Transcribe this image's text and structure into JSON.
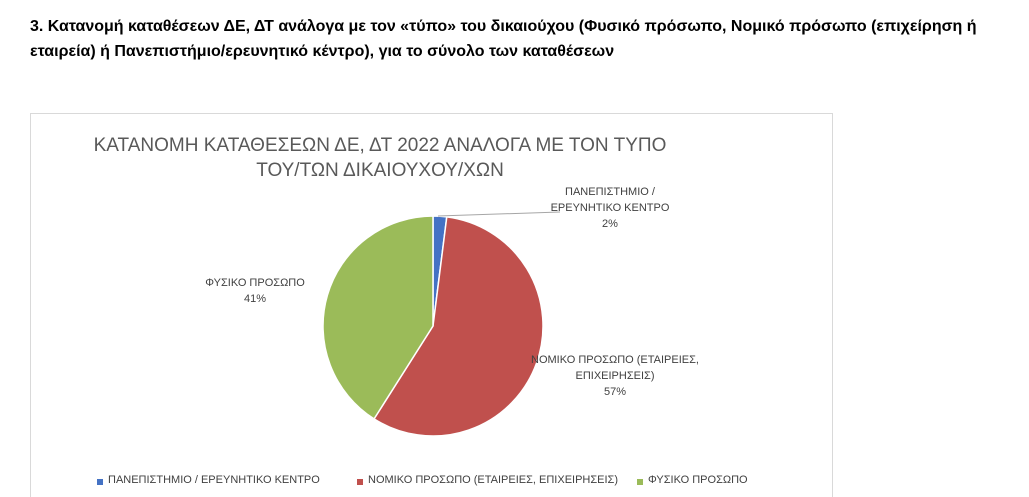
{
  "heading": "3. Κατανομή καταθέσεων ΔΕ, ΔΤ ανάλογα με τον «τύπο» του δικαιούχου (Φυσικό πρόσωπο, Νομικό πρόσωπο (επιχείρηση ή εταιρεία)  ή Πανεπιστήμιο/ερευνητικό κέντρο), για το σύνολο των καταθέσεων",
  "chart_data": {
    "type": "pie",
    "title": "ΚΑΤΑΝΟΜΗ ΚΑΤΑΘΕΣΕΩΝ ΔΕ, ΔΤ 2022 ΑΝΑΛΟΓΑ ΜΕ ΤΟΝ ΤΥΠΟ ΤΟΥ/ΤΩΝ ΔΙΚΑΙΟΥΧΟΥ/ΧΩΝ",
    "categories": [
      "ΠΑΝΕΠΙΣΤΗΜΙΟ / ΕΡΕΥΝΗΤΙΚΟ ΚΕΝΤΡΟ",
      "ΝΟΜΙΚΟ ΠΡΟΣΩΠΟ (ΕΤΑΙΡΕΙΕΣ, ΕΠΙΧΕΙΡΗΣΕΙΣ)",
      "ΦΥΣΙΚΟ ΠΡΟΣΩΠΟ"
    ],
    "values": [
      2,
      57,
      41
    ],
    "value_labels": [
      "2%",
      "57%",
      "41%"
    ],
    "colors": [
      "#4472c4",
      "#c0504d",
      "#9bbb59"
    ],
    "legend": "bottom"
  }
}
